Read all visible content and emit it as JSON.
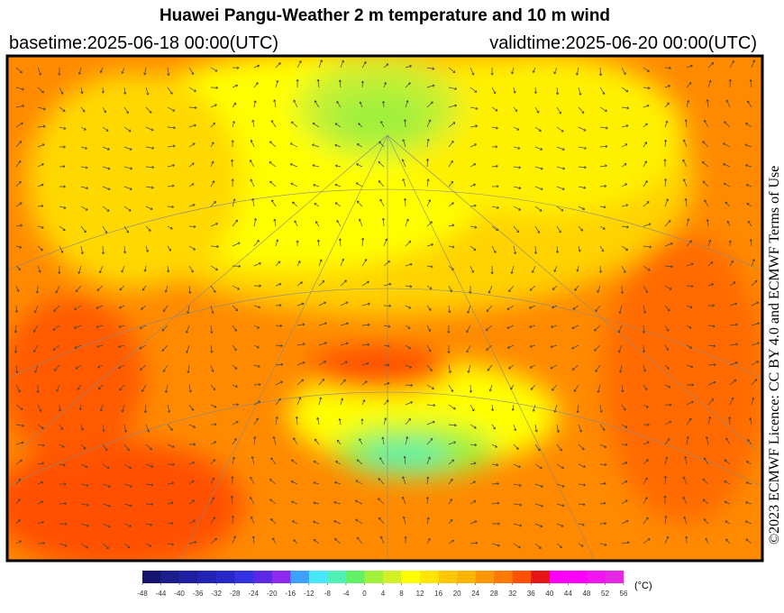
{
  "header": {
    "title": "Huawei Pangu-Weather  2 m temperature and 10 m wind",
    "basetime": "basetime:2025-06-18 00:00(UTC)",
    "validtime": "validtime:2025-06-20 00:00(UTC)"
  },
  "licence": "©2023 ECMWF Licence: CC BY 4.0 and ECMWF Terms of Use",
  "colorbar": {
    "unit": "(°C)",
    "ticks": [
      -48,
      -44,
      -40,
      -36,
      -32,
      -28,
      -24,
      -20,
      -16,
      -12,
      -8,
      -4,
      0,
      4,
      8,
      12,
      16,
      20,
      24,
      28,
      32,
      36,
      40,
      44,
      48,
      52,
      56
    ],
    "colors": [
      "#14146e",
      "#1c1c8c",
      "#1e1ea0",
      "#2222b4",
      "#2828c8",
      "#3232e0",
      "#5a28e6",
      "#8c28f0",
      "#3ca0ff",
      "#46e6ff",
      "#50f0b4",
      "#64f064",
      "#a0f03c",
      "#d2f028",
      "#ffff00",
      "#ffe600",
      "#ffc800",
      "#ffb400",
      "#ff9600",
      "#ff7800",
      "#ff5000",
      "#e61414",
      "#ff00ff",
      "#ff00ff",
      "#f014f0",
      "#e628e6"
    ]
  }
}
